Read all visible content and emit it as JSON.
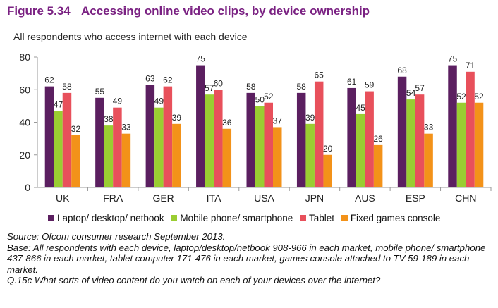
{
  "figure": {
    "number": "Figure 5.34",
    "title": "Accessing online video clips, by device ownership",
    "subtitle": "All respondents who access internet with each device"
  },
  "colors": {
    "title": "#7a2182",
    "series": [
      "#5b1f60",
      "#9acd32",
      "#e8505b",
      "#f39219"
    ]
  },
  "chart_data": {
    "type": "bar",
    "categories": [
      "UK",
      "FRA",
      "GER",
      "ITA",
      "USA",
      "JPN",
      "AUS",
      "ESP",
      "CHN"
    ],
    "series": [
      {
        "name": "Laptop/ desktop/ netbook",
        "values": [
          62,
          55,
          63,
          75,
          58,
          58,
          61,
          68,
          75
        ]
      },
      {
        "name": "Mobile phone/ smartphone",
        "values": [
          47,
          38,
          49,
          57,
          50,
          39,
          45,
          54,
          52
        ]
      },
      {
        "name": "Tablet",
        "values": [
          58,
          49,
          62,
          60,
          52,
          65,
          59,
          57,
          71
        ]
      },
      {
        "name": "Fixed games console",
        "values": [
          32,
          33,
          39,
          36,
          37,
          20,
          26,
          33,
          52
        ]
      }
    ],
    "ylim": [
      0,
      80
    ],
    "yticks": [
      0,
      20,
      40,
      60,
      80
    ],
    "grid": false,
    "legend_position": "bottom",
    "data_labels": true
  },
  "notes": {
    "source": "Source: Ofcom consumer research September 2013.",
    "base": "Base: All respondents with each device, laptop/desktop/netbook 908-966 in each market, mobile phone/ smartphone 437-866 in each market, tablet computer 171-476 in each market, games console attached to TV 59-189 in each market.",
    "question": "Q.15c What sorts of video content do you watch on each of your devices over the internet?"
  }
}
